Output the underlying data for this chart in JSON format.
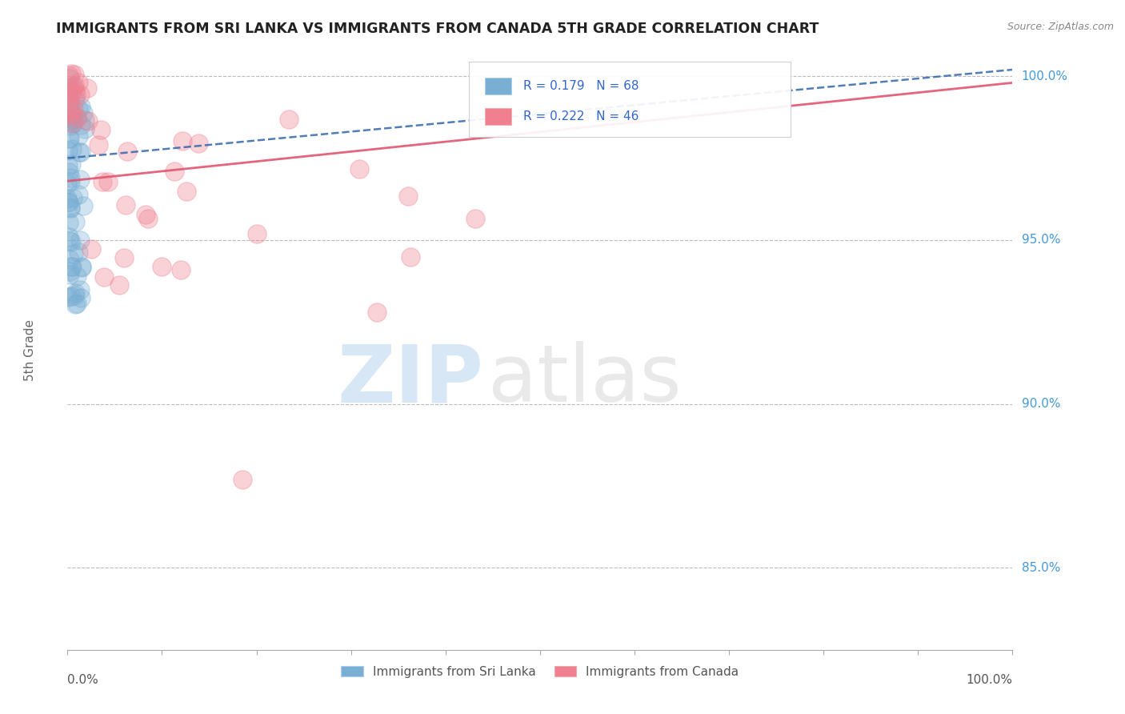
{
  "title": "IMMIGRANTS FROM SRI LANKA VS IMMIGRANTS FROM CANADA 5TH GRADE CORRELATION CHART",
  "source": "Source: ZipAtlas.com",
  "ylabel": "5th Grade",
  "ytick_labels": [
    "100.0%",
    "95.0%",
    "90.0%",
    "85.0%"
  ],
  "ytick_values": [
    1.0,
    0.95,
    0.9,
    0.85
  ],
  "xlim": [
    0.0,
    1.0
  ],
  "ylim": [
    0.825,
    1.008
  ],
  "blue_line_x0": 0.0,
  "blue_line_x1": 1.0,
  "blue_line_y0": 0.975,
  "blue_line_y1": 1.002,
  "pink_line_x0": 0.0,
  "pink_line_x1": 1.0,
  "pink_line_y0": 0.968,
  "pink_line_y1": 0.998,
  "bg_color": "#ffffff",
  "grid_color": "#bbbbbb",
  "blue_color": "#7aafd4",
  "pink_color": "#f08090",
  "blue_line_color": "#3366aa",
  "pink_line_color": "#e05570",
  "title_color": "#222222",
  "axis_label_color": "#666666",
  "right_label_color": "#4499dd",
  "legend_label_color": "#3366cc"
}
